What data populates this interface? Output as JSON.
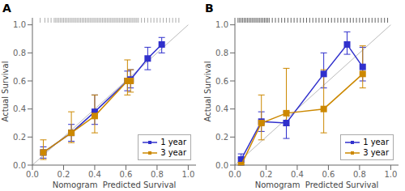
{
  "chart_data": [
    {
      "type": "line",
      "title": "A",
      "x_label": "Nomogram  Predicted Survival",
      "y_label": "Actual Survival",
      "series": [
        {
          "name": "1 year",
          "color": "#3030CC",
          "marker": "square",
          "line_style": "solid",
          "x": [
            0.07,
            0.25,
            0.4,
            0.61,
            0.63,
            0.74,
            0.83
          ],
          "values": [
            0.09,
            0.23,
            0.38,
            0.6,
            0.61,
            0.76,
            0.86
          ],
          "error_lo": [
            0.04,
            0.06,
            0.09,
            0.07,
            0.06,
            0.08,
            0.06
          ],
          "error_hi": [
            0.04,
            0.06,
            0.12,
            0.07,
            0.07,
            0.08,
            0.05
          ]
        },
        {
          "name": "3 year",
          "color": "#CC8800",
          "marker": "square",
          "line_style": "solid",
          "x": [
            0.07,
            0.25,
            0.4,
            0.61,
            0.63
          ],
          "values": [
            0.09,
            0.23,
            0.35,
            0.6,
            0.6
          ],
          "error_lo": [
            0.05,
            0.07,
            0.12,
            0.1,
            0.08
          ],
          "error_hi": [
            0.09,
            0.15,
            0.15,
            0.15,
            0.08
          ]
        }
      ],
      "reference_line": {
        "x": [
          0,
          1
        ],
        "y": [
          0,
          1
        ],
        "color": "#BBBBBB"
      },
      "rug": {
        "x": [
          0.05,
          0.08,
          0.1,
          0.12,
          0.14,
          0.15,
          0.16,
          0.17,
          0.18,
          0.19,
          0.2,
          0.21,
          0.22,
          0.23,
          0.24,
          0.25,
          0.26,
          0.27,
          0.28,
          0.29,
          0.3,
          0.31,
          0.32,
          0.33,
          0.34,
          0.35,
          0.36,
          0.37,
          0.38,
          0.39,
          0.4,
          0.41,
          0.42,
          0.43,
          0.44,
          0.45,
          0.46,
          0.47,
          0.48,
          0.49,
          0.5,
          0.51,
          0.52,
          0.53,
          0.54,
          0.55,
          0.56,
          0.57,
          0.58,
          0.59,
          0.6,
          0.61,
          0.62,
          0.63,
          0.64,
          0.65,
          0.66,
          0.67,
          0.68,
          0.7,
          0.72,
          0.74,
          0.76,
          0.78,
          0.8,
          0.82,
          0.84,
          0.86,
          0.88,
          0.9,
          0.92,
          0.94
        ],
        "color": "#888888"
      },
      "xlim": [
        0.0,
        1.05
      ],
      "ylim": [
        0.0,
        1.05
      ],
      "xticks": [
        {
          "value": 0.0,
          "label": "0.0"
        },
        0.2,
        0.4,
        0.6,
        0.8,
        {
          "value": 1.0,
          "label": "1.0"
        }
      ],
      "yticks": [
        {
          "value": 0.0,
          "label": "0.0"
        },
        0.2,
        0.4,
        0.6,
        0.8,
        {
          "value": 1.0,
          "label": "1.0"
        }
      ],
      "grid": false,
      "legend": "lower right"
    },
    {
      "type": "line",
      "title": "B",
      "x_label": "Nomogram  Predicted Survival",
      "y_label": "Actual Survival",
      "series": [
        {
          "name": "1 year",
          "color": "#3030CC",
          "marker": "square",
          "line_style": "solid",
          "x": [
            0.04,
            0.17,
            0.33,
            0.57,
            0.72,
            0.82
          ],
          "values": [
            0.04,
            0.31,
            0.3,
            0.65,
            0.86,
            0.7
          ],
          "error_lo": [
            0.04,
            0.07,
            0.11,
            0.1,
            0.07,
            0.1
          ],
          "error_hi": [
            0.04,
            0.07,
            0.08,
            0.15,
            0.09,
            0.14
          ]
        },
        {
          "name": "3 year",
          "color": "#CC8800",
          "marker": "square",
          "line_style": "solid",
          "x": [
            0.04,
            0.17,
            0.33,
            0.57,
            0.82
          ],
          "values": [
            0.0,
            0.3,
            0.37,
            0.4,
            0.65
          ],
          "error_lo": [
            0.0,
            0.12,
            0.09,
            0.17,
            0.1
          ],
          "error_hi": [
            0.05,
            0.2,
            0.32,
            0.28,
            0.2
          ]
        }
      ],
      "reference_line": {
        "x": [
          0,
          1
        ],
        "y": [
          0,
          1
        ],
        "color": "#BBBBBB"
      },
      "rug": {
        "x": [
          0.02,
          0.03,
          0.04,
          0.05,
          0.06,
          0.07,
          0.08,
          0.09,
          0.1,
          0.11,
          0.12,
          0.13,
          0.14,
          0.15,
          0.16,
          0.17,
          0.18,
          0.19,
          0.2,
          0.21,
          0.22,
          0.24,
          0.26,
          0.28,
          0.3,
          0.32,
          0.34,
          0.36,
          0.38,
          0.4,
          0.42,
          0.44,
          0.46,
          0.48,
          0.5,
          0.52,
          0.54,
          0.56,
          0.58,
          0.6,
          0.62,
          0.64,
          0.66,
          0.68,
          0.7,
          0.72,
          0.74,
          0.76,
          0.78,
          0.8,
          0.82,
          0.84,
          0.86,
          0.88,
          0.9,
          0.92,
          0.94,
          0.96,
          0.98
        ],
        "color": "#222222"
      },
      "xlim": [
        0.0,
        1.05
      ],
      "ylim": [
        0.0,
        1.05
      ],
      "xticks": [
        {
          "value": 0.0,
          "label": "0.0"
        },
        0.2,
        0.4,
        0.6,
        0.8,
        {
          "value": 1.0,
          "label": "1.0"
        }
      ],
      "yticks": [
        {
          "value": 0.0,
          "label": "0.0"
        },
        0.2,
        0.4,
        0.6,
        0.8,
        {
          "value": 1.0,
          "label": "1.0"
        }
      ],
      "grid": false,
      "legend": "lower right"
    }
  ]
}
